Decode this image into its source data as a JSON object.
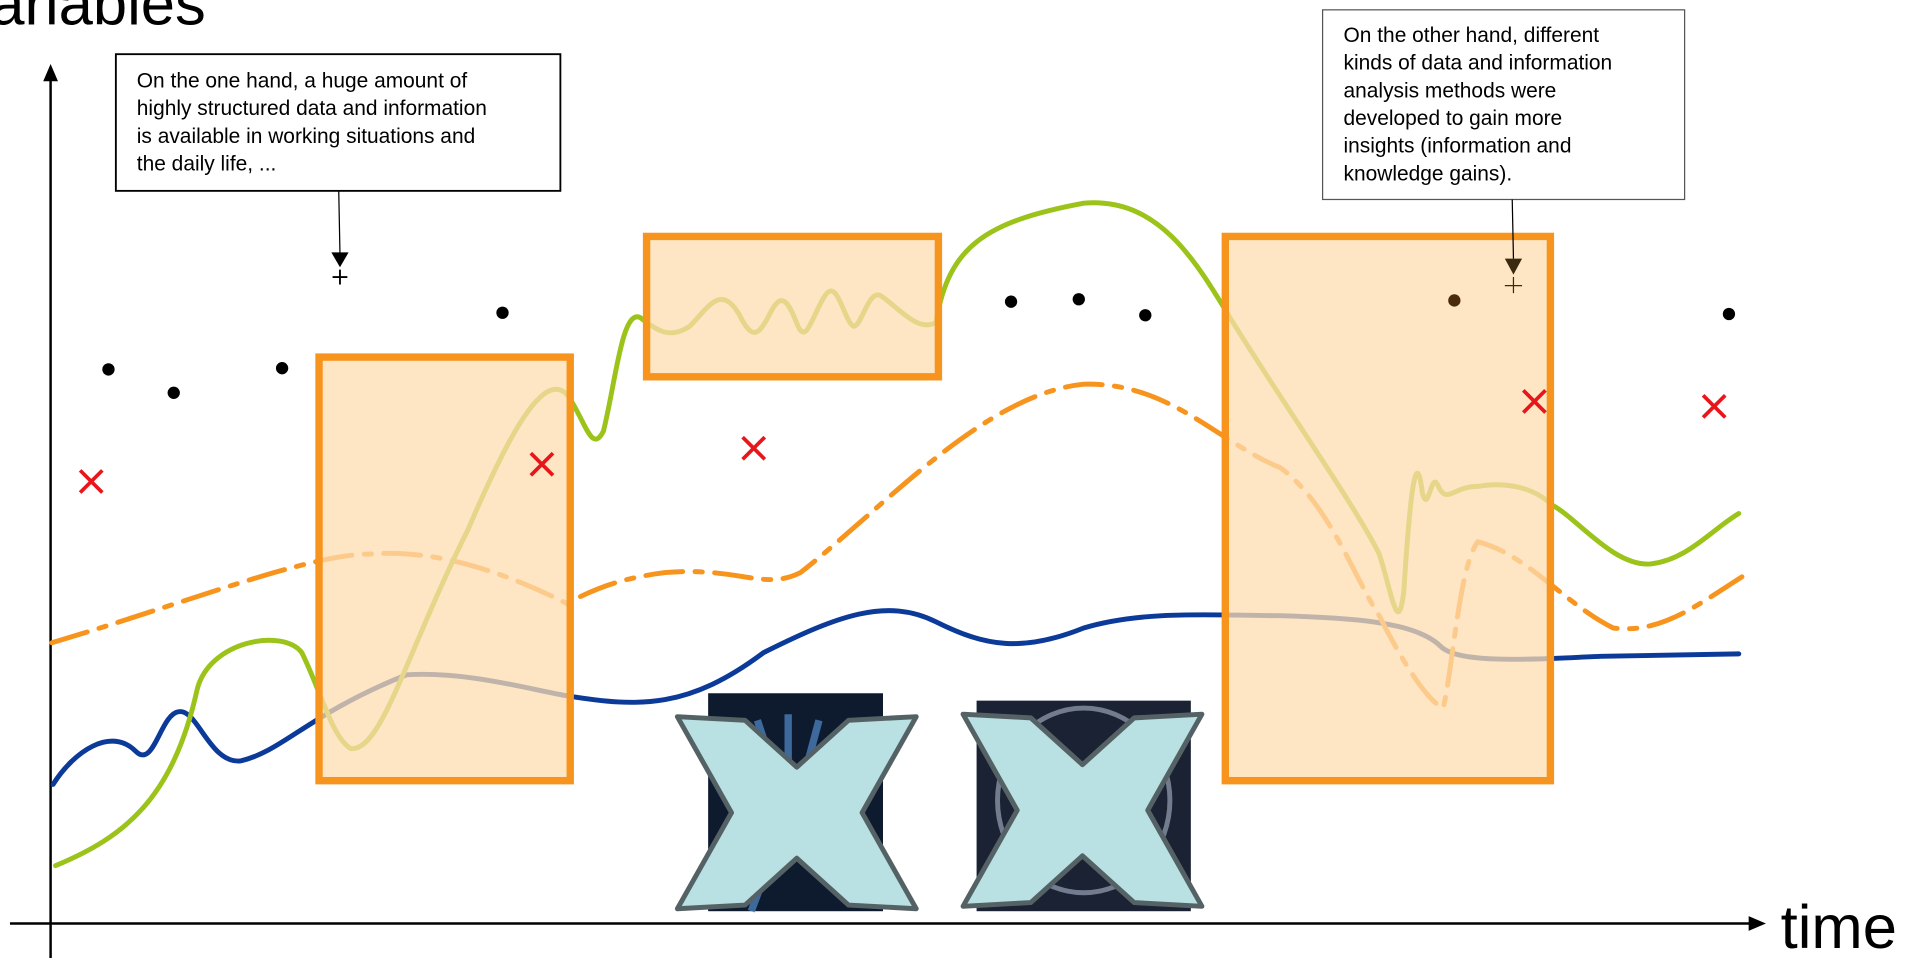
{
  "y_axis_label": "ariables",
  "x_axis_label": "time",
  "callouts": {
    "left": {
      "lines": [
        "On the one hand, a huge amount of",
        "highly structured data and information",
        "is available in working situations and",
        "the daily life, ..."
      ]
    },
    "right": {
      "lines": [
        "On the other hand, different",
        "kinds of data and information",
        "analysis methods were",
        "developed to gain more",
        "insights (information and",
        "knowledge gains)."
      ]
    }
  }
}
